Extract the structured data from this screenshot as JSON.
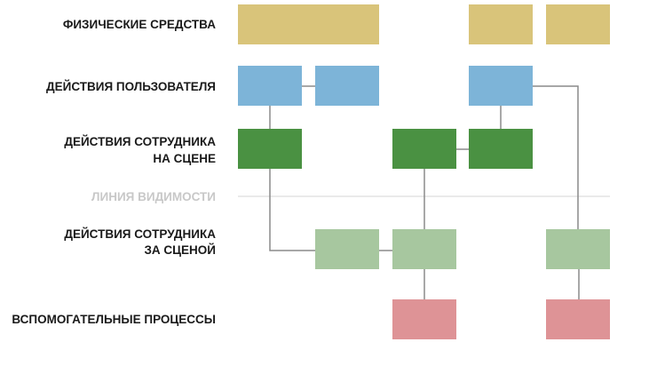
{
  "lanes": {
    "physical": "ФИЗИЧЕСКИЕ СРЕДСТВА",
    "user": "ДЕЙСТВИЯ ПОЛЬЗОВАТЕЛЯ",
    "onstage_1": "ДЕЙСТВИЯ СОТРУДНИКА",
    "onstage_2": "НА СЦЕНЕ",
    "visibility": "ЛИНИЯ ВИДИМОСТИ",
    "backstage_1": "ДЕЙСТВИЯ СОТРУДНИКА",
    "backstage_2": "ЗА СЦЕНОЙ",
    "support": "ВСПОМОГАТЕЛЬНЫЕ ПРОЦЕССЫ"
  },
  "colors": {
    "physical": "#d9c47a",
    "user": "#7db4d8",
    "onstage": "#4a9142",
    "backstage": "#a7c79f",
    "support": "#de9396",
    "visibility_line": "#dddddd",
    "connector": "#8a8a8a"
  }
}
